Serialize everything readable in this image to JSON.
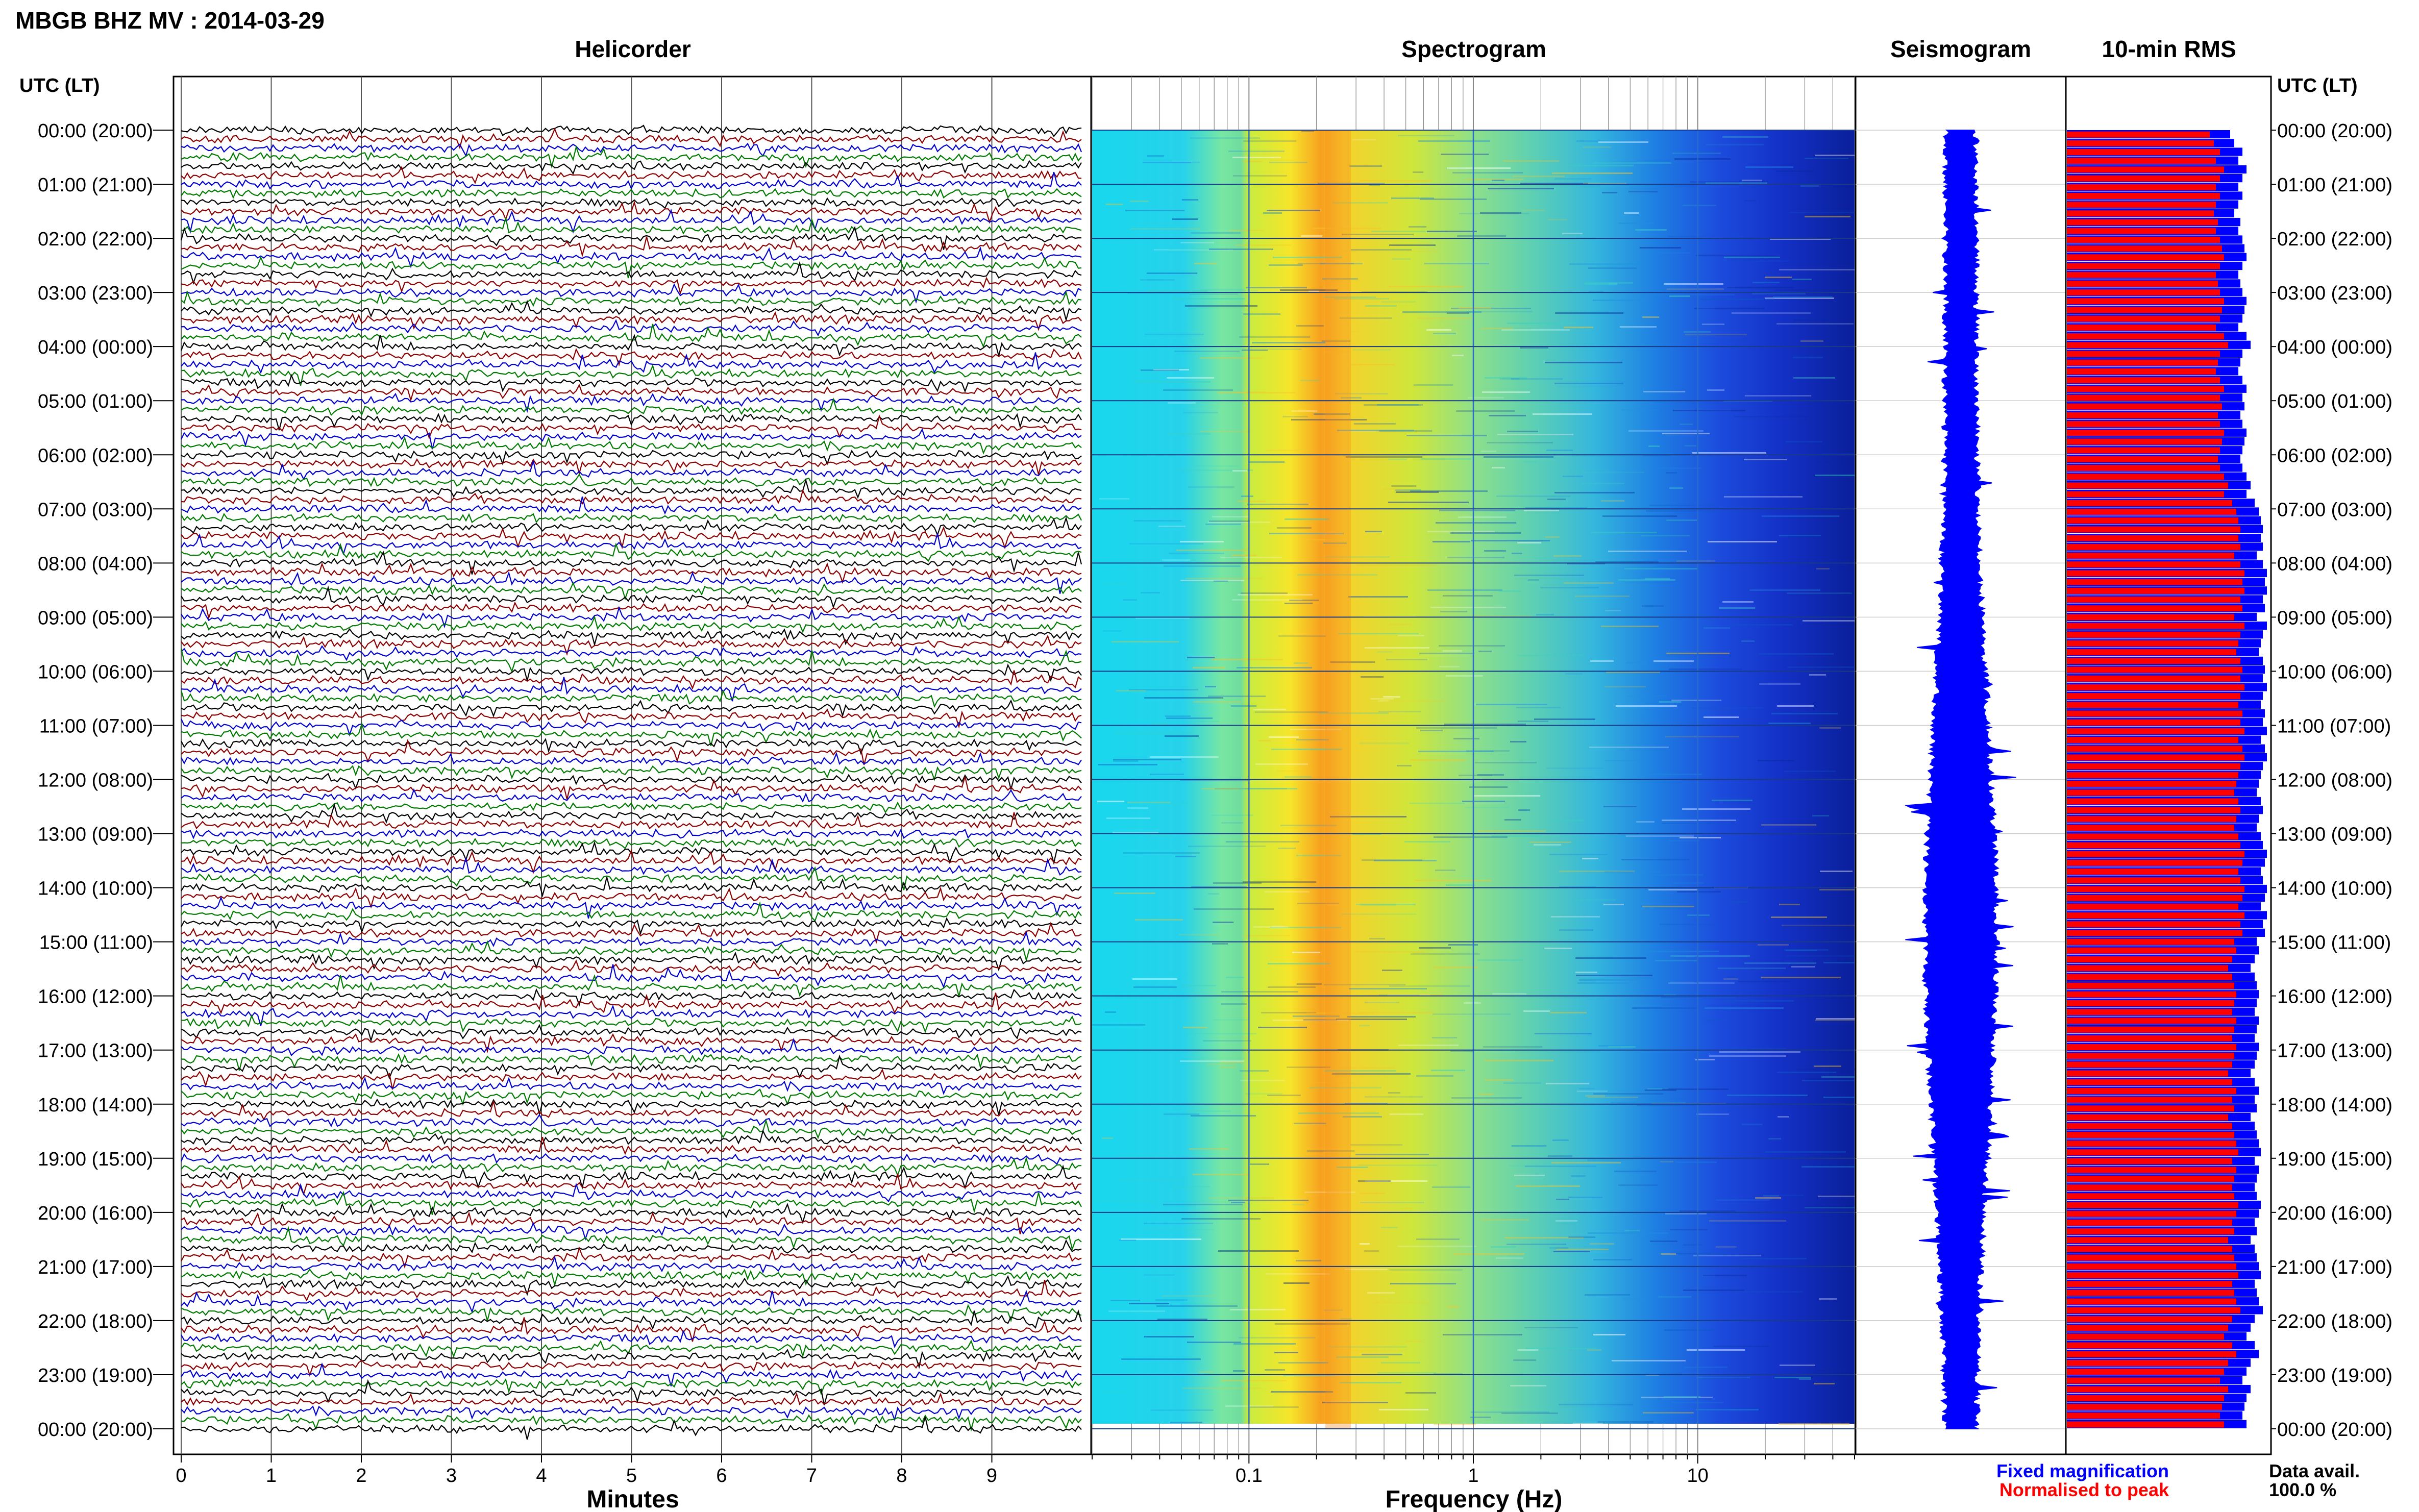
{
  "title": "MBGB BHZ MV : 2014-03-29",
  "time_axis_label": "UTC (LT)",
  "time_labels": [
    "00:00 (20:00)",
    "01:00 (21:00)",
    "02:00 (22:00)",
    "03:00 (23:00)",
    "04:00 (00:00)",
    "05:00 (01:00)",
    "06:00 (02:00)",
    "07:00 (03:00)",
    "08:00 (04:00)",
    "09:00 (05:00)",
    "10:00 (06:00)",
    "11:00 (07:00)",
    "12:00 (08:00)",
    "13:00 (09:00)",
    "14:00 (10:00)",
    "15:00 (11:00)",
    "16:00 (12:00)",
    "17:00 (13:00)",
    "18:00 (14:00)",
    "19:00 (15:00)",
    "20:00 (16:00)",
    "21:00 (17:00)",
    "22:00 (18:00)",
    "23:00 (19:00)",
    "00:00 (20:00)"
  ],
  "legend": {
    "fixed": "Fixed magnification",
    "normalised": "Normalised to peak",
    "data_avail_label": "Data avail.",
    "data_avail_value": "100.0 %"
  },
  "colors": {
    "helicorder_traces": [
      "#000000",
      "#8b0000",
      "#0000cc",
      "#007a00"
    ],
    "fixed": "#0000ff",
    "normalised": "#ff0000"
  },
  "chart_data": [
    {
      "type": "line",
      "title": "Helicorder",
      "xlabel": "Minutes",
      "x_ticks": [
        0,
        1,
        2,
        3,
        4,
        5,
        6,
        7,
        8,
        9
      ],
      "xlim": [
        0,
        10
      ],
      "lines_per_hour": 6,
      "hours": 24
    },
    {
      "type": "heatmap",
      "title": "Spectrogram",
      "xlabel": "Frequency (Hz)",
      "x_scale": "log",
      "xlim": [
        0.02,
        50
      ],
      "x_tick_labels": [
        {
          "value": 0.1,
          "label": "0.1"
        },
        {
          "value": 1,
          "label": "1"
        },
        {
          "value": 10,
          "label": "10"
        }
      ],
      "peak_frequency_hz": 0.25
    },
    {
      "type": "line",
      "title": "Seismogram"
    },
    {
      "type": "bar",
      "title": "10-min RMS",
      "series": [
        {
          "name": "Fixed magnification",
          "values": [
            0.8,
            0.82,
            0.86,
            0.84,
            0.88,
            0.86,
            0.84,
            0.86,
            0.84,
            0.82,
            0.85,
            0.84,
            0.86,
            0.87,
            0.88,
            0.86,
            0.84,
            0.85,
            0.86,
            0.88,
            0.87,
            0.86,
            0.84,
            0.88,
            0.9,
            0.86,
            0.85,
            0.84,
            0.86,
            0.88,
            0.86,
            0.87,
            0.85,
            0.86,
            0.88,
            0.87,
            0.86,
            0.85,
            0.86,
            0.88,
            0.9,
            0.88,
            0.92,
            0.94,
            0.95,
            0.96,
            0.95,
            0.96,
            0.93,
            0.96,
            0.98,
            0.97,
            0.98,
            0.96,
            0.97,
            0.93,
            0.98,
            0.96,
            0.95,
            0.94,
            0.96,
            0.97,
            0.96,
            0.98,
            0.96,
            0.95,
            0.97,
            0.96,
            0.98,
            0.95,
            0.97,
            0.98,
            0.96,
            0.95,
            0.94,
            0.93,
            0.95,
            0.96,
            0.94,
            0.93,
            0.95,
            0.96,
            0.98,
            0.97,
            0.95,
            0.96,
            0.98,
            0.97,
            0.95,
            0.98,
            0.96,
            0.97,
            0.93,
            0.94,
            0.92,
            0.9,
            0.92,
            0.93,
            0.94,
            0.93,
            0.92,
            0.94,
            0.93,
            0.92,
            0.94,
            0.93,
            0.92,
            0.9,
            0.92,
            0.94,
            0.92,
            0.93,
            0.9,
            0.92,
            0.93,
            0.94,
            0.95,
            0.92,
            0.94,
            0.93,
            0.92,
            0.93,
            0.95,
            0.94,
            0.92,
            0.93,
            0.9,
            0.92,
            0.93,
            0.94,
            0.95,
            0.92,
            0.93,
            0.94,
            0.96,
            0.92,
            0.9,
            0.88,
            0.92,
            0.94,
            0.9,
            0.88,
            0.86,
            0.9,
            0.88,
            0.87,
            0.86,
            0.88
          ]
        },
        {
          "name": "Normalised to peak",
          "values": [
            0.7,
            0.72,
            0.75,
            0.73,
            0.77,
            0.75,
            0.73,
            0.75,
            0.73,
            0.72,
            0.74,
            0.73,
            0.75,
            0.76,
            0.77,
            0.75,
            0.73,
            0.74,
            0.75,
            0.77,
            0.76,
            0.75,
            0.73,
            0.77,
            0.79,
            0.75,
            0.74,
            0.73,
            0.75,
            0.77,
            0.75,
            0.76,
            0.74,
            0.75,
            0.77,
            0.76,
            0.75,
            0.74,
            0.75,
            0.77,
            0.79,
            0.77,
            0.81,
            0.83,
            0.84,
            0.85,
            0.84,
            0.85,
            0.82,
            0.85,
            0.87,
            0.86,
            0.87,
            0.85,
            0.86,
            0.82,
            0.87,
            0.85,
            0.84,
            0.83,
            0.85,
            0.86,
            0.85,
            0.87,
            0.85,
            0.84,
            0.86,
            0.85,
            0.87,
            0.84,
            0.86,
            0.87,
            0.85,
            0.84,
            0.83,
            0.82,
            0.84,
            0.85,
            0.83,
            0.82,
            0.84,
            0.85,
            0.87,
            0.86,
            0.84,
            0.85,
            0.87,
            0.86,
            0.84,
            0.87,
            0.85,
            0.86,
            0.82,
            0.83,
            0.81,
            0.79,
            0.81,
            0.82,
            0.83,
            0.82,
            0.81,
            0.83,
            0.82,
            0.81,
            0.83,
            0.82,
            0.81,
            0.79,
            0.81,
            0.83,
            0.81,
            0.82,
            0.79,
            0.81,
            0.82,
            0.83,
            0.84,
            0.81,
            0.83,
            0.82,
            0.81,
            0.82,
            0.84,
            0.83,
            0.81,
            0.82,
            0.79,
            0.81,
            0.82,
            0.83,
            0.84,
            0.81,
            0.82,
            0.83,
            0.85,
            0.81,
            0.79,
            0.77,
            0.81,
            0.83,
            0.79,
            0.77,
            0.75,
            0.79,
            0.77,
            0.76,
            0.75,
            0.77
          ]
        }
      ]
    }
  ]
}
